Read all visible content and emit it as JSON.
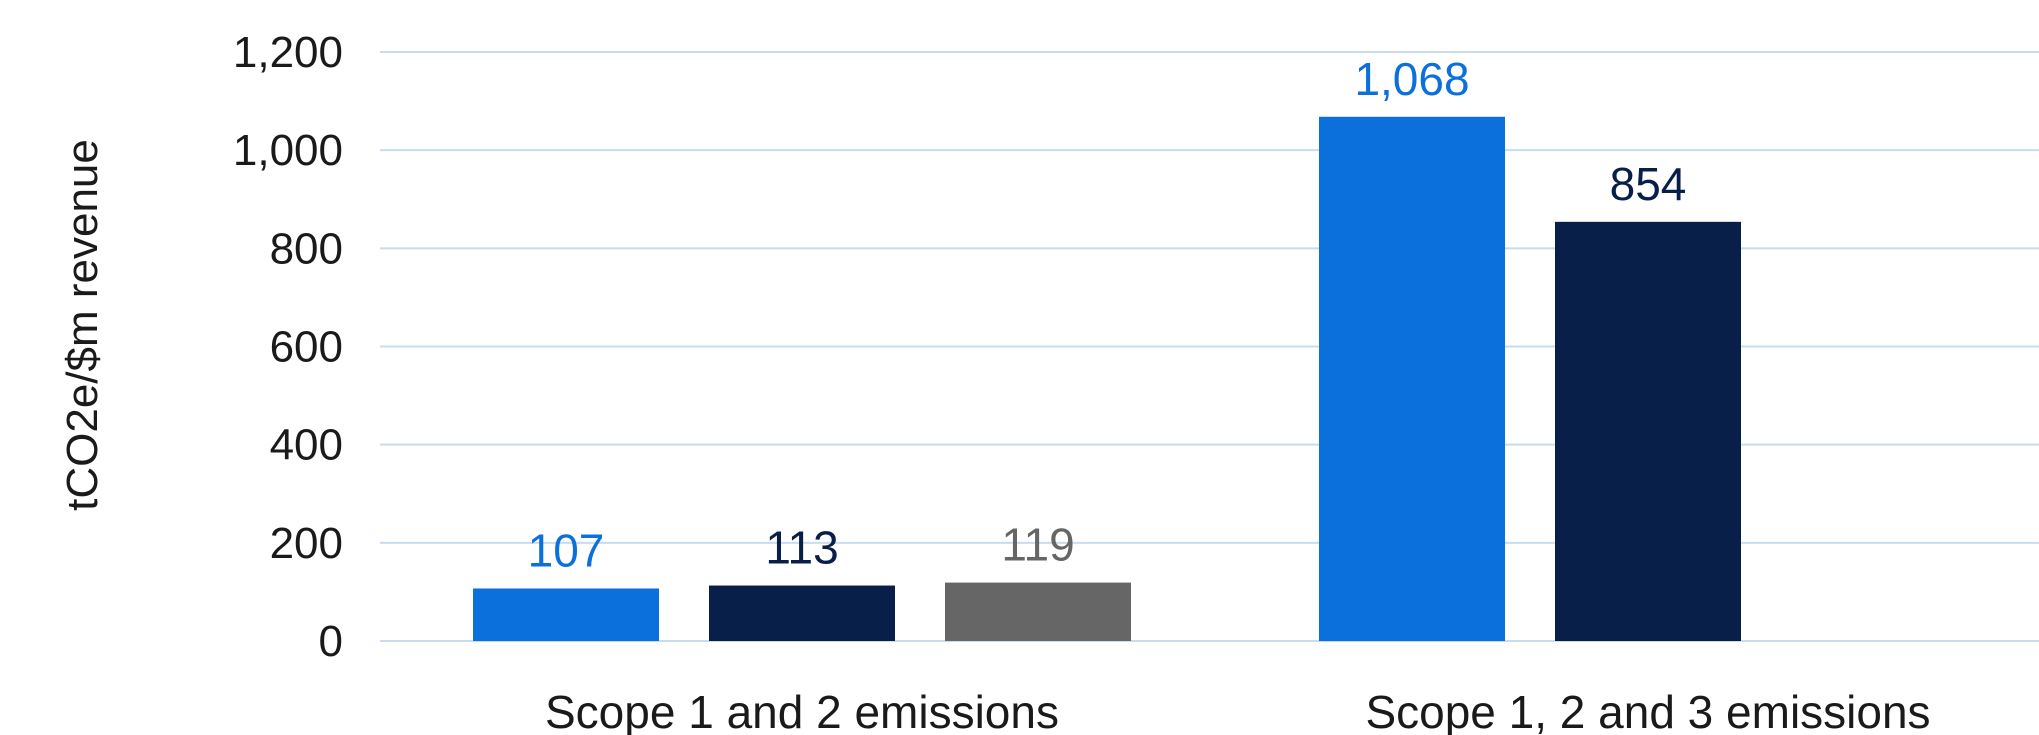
{
  "chart_data": {
    "type": "bar",
    "title": "",
    "xlabel": "",
    "ylabel": "tCO2e/$m revenue",
    "ylim": [
      0,
      1200
    ],
    "yticks": [
      0,
      200,
      400,
      600,
      800,
      1000,
      1200
    ],
    "ytick_labels": [
      "0",
      "200",
      "400",
      "600",
      "800",
      "1,000",
      "1,200"
    ],
    "grid": true,
    "legend": "none",
    "categories": [
      "Scope 1 and 2 emissions",
      "Scope 1, 2 and 3 emissions"
    ],
    "series": [
      {
        "color": "#0b70dc",
        "values": [
          107,
          1068
        ],
        "labels": [
          "107",
          "1,068"
        ]
      },
      {
        "color": "#081f4a",
        "values": [
          113,
          854
        ],
        "labels": [
          "113",
          "854"
        ]
      },
      {
        "color": "#666666",
        "values": [
          119,
          null
        ],
        "labels": [
          "119",
          ""
        ]
      }
    ]
  }
}
